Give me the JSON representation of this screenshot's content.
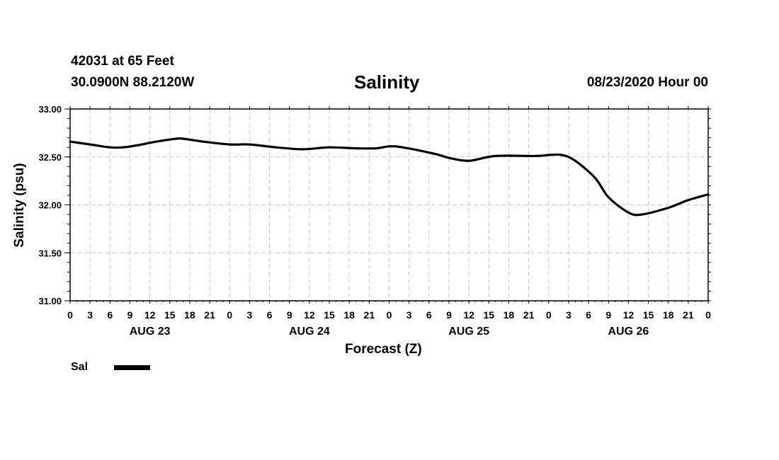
{
  "header": {
    "station": "42031 at 65 Feet",
    "coords": "30.0900N 88.2120W",
    "title": "Salinity",
    "datetime": "08/23/2020 Hour 00"
  },
  "legend": {
    "label": "Sal"
  },
  "chart_data": {
    "type": "line",
    "title": "Salinity",
    "xlabel": "Forecast (Z)",
    "ylabel": "Salinity (psu)",
    "ylim": [
      31.0,
      33.0
    ],
    "yticks": [
      "31.00",
      "31.50",
      "32.00",
      "32.50",
      "33.00"
    ],
    "xlim_hours": [
      0,
      96
    ],
    "xtick_labels": [
      "0",
      "3",
      "6",
      "9",
      "12",
      "15",
      "18",
      "21",
      "0",
      "3",
      "6",
      "9",
      "12",
      "15",
      "18",
      "21",
      "0",
      "3",
      "6",
      "9",
      "12",
      "15",
      "18",
      "21",
      "0",
      "3",
      "6",
      "9",
      "12",
      "15",
      "18",
      "21",
      "0"
    ],
    "day_labels": [
      "AUG 23",
      "AUG 24",
      "AUG 25",
      "AUG 26"
    ],
    "grid": true,
    "legend_position": "bottom-left",
    "series": [
      {
        "name": "Sal",
        "x": [
          0,
          3,
          6,
          8,
          10,
          13,
          16,
          17,
          20,
          24,
          27,
          31,
          35,
          39,
          43,
          46,
          48,
          50,
          55,
          57,
          60,
          64,
          70,
          72,
          74,
          76,
          79,
          81,
          84,
          86,
          90,
          93,
          96
        ],
        "values": [
          32.66,
          32.63,
          32.6,
          32.6,
          32.62,
          32.66,
          32.69,
          32.69,
          32.66,
          32.63,
          32.63,
          32.6,
          32.58,
          32.6,
          32.59,
          32.59,
          32.61,
          32.6,
          32.53,
          32.49,
          32.46,
          32.51,
          32.51,
          32.52,
          32.52,
          32.46,
          32.28,
          32.08,
          31.92,
          31.9,
          31.97,
          32.05,
          32.11
        ]
      }
    ]
  }
}
